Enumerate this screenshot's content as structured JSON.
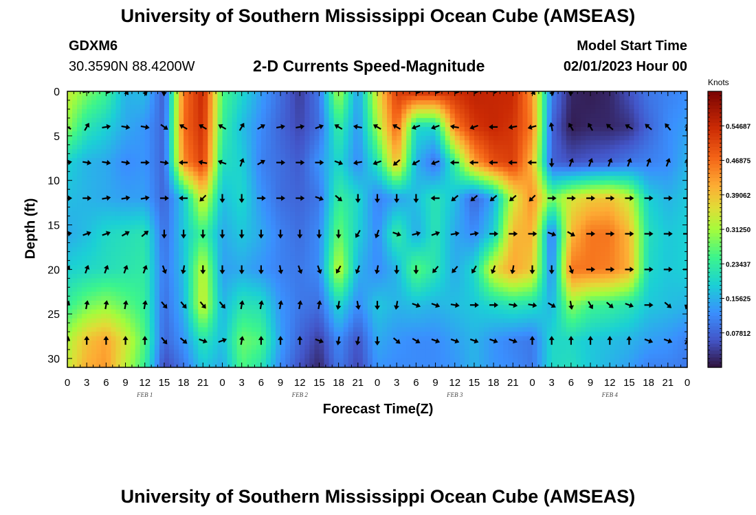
{
  "header": {
    "title": "University of Southern Mississippi Ocean Cube (AMSEAS)",
    "station": "GDXM6",
    "coordinates": "30.3590N  88.4200W",
    "subtitle": "2-D Currents Speed-Magnitude",
    "start_label": "Model Start Time",
    "start_value": "02/01/2023 Hour 00"
  },
  "footer": {
    "title": "University of Southern Mississippi Ocean Cube (AMSEAS)"
  },
  "chart_data": {
    "type": "heatmap",
    "xlabel": "Forecast Time(Z)",
    "ylabel": "Depth (ft)",
    "x_hours_range": [
      0,
      96
    ],
    "y_range": [
      0,
      31
    ],
    "y_inverted": true,
    "x_tick_labels": [
      "0",
      "3",
      "6",
      "9",
      "12",
      "15",
      "18",
      "21",
      "0",
      "3",
      "6",
      "9",
      "12",
      "15",
      "18",
      "21",
      "0",
      "3",
      "6",
      "9",
      "12",
      "15",
      "18",
      "21",
      "0",
      "3",
      "6",
      "9",
      "12",
      "15",
      "18",
      "21",
      "0"
    ],
    "y_ticks": [
      0,
      5,
      10,
      15,
      20,
      25,
      30
    ],
    "day_labels": [
      {
        "label": "FEB 1",
        "hour": 12
      },
      {
        "label": "FEB 2",
        "hour": 36
      },
      {
        "label": "FEB 3",
        "hour": 60
      },
      {
        "label": "FEB 4",
        "hour": 84
      }
    ],
    "colorbar": {
      "units": "Knots",
      "range": [
        0,
        0.625
      ],
      "tick_labels": [
        "0.54687",
        "0.46875",
        "0.39062",
        "0.31250",
        "0.23437",
        "0.15625",
        "0.07812"
      ],
      "tick_values": [
        0.54687,
        0.46875,
        0.39062,
        0.3125,
        0.23437,
        0.15625,
        0.07812
      ]
    },
    "grid_times_hours": [
      0,
      3,
      6,
      9,
      12,
      15,
      18,
      21,
      24,
      27,
      30,
      33,
      36,
      39,
      42,
      45,
      48,
      51,
      54,
      57,
      60,
      63,
      66,
      69,
      72,
      75,
      78,
      81,
      84,
      87,
      90,
      93,
      96
    ],
    "grid_depths_ft": [
      0,
      4,
      8,
      12,
      16,
      20,
      24,
      28,
      31
    ],
    "speed_knots": [
      [
        0.34,
        0.29,
        0.25,
        0.16,
        0.17,
        0.07,
        0.46,
        0.55,
        0.26,
        0.2,
        0.14,
        0.09,
        0.04,
        0.1,
        0.32,
        0.14,
        0.36,
        0.52,
        0.54,
        0.54,
        0.54,
        0.56,
        0.55,
        0.55,
        0.43,
        0.11,
        0.02,
        0.01,
        0.02,
        0.06,
        0.1,
        0.11,
        0.12
      ],
      [
        0.3,
        0.22,
        0.19,
        0.15,
        0.13,
        0.08,
        0.47,
        0.54,
        0.24,
        0.17,
        0.12,
        0.08,
        0.05,
        0.09,
        0.24,
        0.13,
        0.31,
        0.48,
        0.2,
        0.2,
        0.45,
        0.53,
        0.55,
        0.53,
        0.45,
        0.08,
        0.01,
        0.02,
        0.02,
        0.03,
        0.08,
        0.12,
        0.14
      ],
      [
        0.19,
        0.16,
        0.15,
        0.12,
        0.13,
        0.08,
        0.44,
        0.52,
        0.21,
        0.19,
        0.11,
        0.09,
        0.07,
        0.13,
        0.2,
        0.12,
        0.22,
        0.4,
        0.16,
        0.09,
        0.24,
        0.42,
        0.5,
        0.52,
        0.4,
        0.08,
        0.06,
        0.07,
        0.08,
        0.1,
        0.11,
        0.12,
        0.16
      ],
      [
        0.17,
        0.16,
        0.15,
        0.14,
        0.14,
        0.08,
        0.18,
        0.36,
        0.17,
        0.2,
        0.13,
        0.09,
        0.08,
        0.1,
        0.24,
        0.2,
        0.11,
        0.14,
        0.17,
        0.22,
        0.17,
        0.08,
        0.15,
        0.34,
        0.44,
        0.28,
        0.35,
        0.38,
        0.39,
        0.34,
        0.19,
        0.16,
        0.18
      ],
      [
        0.15,
        0.17,
        0.2,
        0.21,
        0.22,
        0.09,
        0.18,
        0.25,
        0.15,
        0.18,
        0.15,
        0.11,
        0.09,
        0.12,
        0.28,
        0.19,
        0.12,
        0.24,
        0.15,
        0.22,
        0.15,
        0.12,
        0.19,
        0.4,
        0.41,
        0.09,
        0.4,
        0.46,
        0.46,
        0.4,
        0.21,
        0.18,
        0.19
      ],
      [
        0.19,
        0.2,
        0.21,
        0.22,
        0.23,
        0.1,
        0.17,
        0.34,
        0.14,
        0.15,
        0.13,
        0.11,
        0.1,
        0.12,
        0.34,
        0.16,
        0.12,
        0.16,
        0.27,
        0.22,
        0.15,
        0.2,
        0.36,
        0.42,
        0.38,
        0.11,
        0.46,
        0.46,
        0.45,
        0.41,
        0.2,
        0.18,
        0.19
      ],
      [
        0.24,
        0.28,
        0.3,
        0.27,
        0.24,
        0.09,
        0.16,
        0.35,
        0.16,
        0.22,
        0.21,
        0.13,
        0.1,
        0.09,
        0.2,
        0.12,
        0.18,
        0.16,
        0.17,
        0.16,
        0.17,
        0.18,
        0.2,
        0.22,
        0.21,
        0.16,
        0.3,
        0.25,
        0.24,
        0.22,
        0.18,
        0.17,
        0.16
      ],
      [
        0.32,
        0.39,
        0.42,
        0.35,
        0.26,
        0.08,
        0.13,
        0.22,
        0.17,
        0.28,
        0.26,
        0.14,
        0.08,
        0.04,
        0.12,
        0.06,
        0.15,
        0.13,
        0.12,
        0.12,
        0.14,
        0.16,
        0.13,
        0.11,
        0.1,
        0.2,
        0.2,
        0.18,
        0.17,
        0.16,
        0.14,
        0.13,
        0.11
      ],
      [
        0.34,
        0.41,
        0.43,
        0.33,
        0.24,
        0.05,
        0.1,
        0.18,
        0.15,
        0.26,
        0.22,
        0.12,
        0.06,
        0.02,
        0.1,
        0.05,
        0.13,
        0.12,
        0.12,
        0.12,
        0.13,
        0.16,
        0.13,
        0.12,
        0.1,
        0.2,
        0.21,
        0.18,
        0.16,
        0.14,
        0.11,
        0.11,
        0.1
      ]
    ],
    "vector_times_hours": [
      0,
      3,
      6,
      9,
      12,
      15,
      18,
      21,
      24,
      27,
      30,
      33,
      36,
      39,
      42,
      45,
      48,
      51,
      54,
      57,
      60,
      63,
      66,
      69,
      72,
      75,
      78,
      81,
      84,
      87,
      90,
      93,
      96
    ],
    "vector_depths_ft": [
      0,
      4,
      8,
      12,
      16,
      20,
      24,
      28
    ],
    "vector_direction_deg": [
      [
        null,
        75,
        100,
        140,
        160,
        185,
        null,
        null,
        null,
        null,
        null,
        null,
        null,
        null,
        null,
        null,
        null,
        null,
        100,
        100,
        100,
        95,
        90,
        null,
        140,
        165,
        190,
        null,
        null,
        null,
        null,
        null,
        null
      ],
      [
        300,
        30,
        80,
        100,
        100,
        125,
        300,
        300,
        300,
        30,
        60,
        80,
        80,
        70,
        300,
        280,
        300,
        300,
        250,
        250,
        280,
        250,
        270,
        260,
        255,
        350,
        330,
        330,
        310,
        300,
        310,
        320,
        20
      ],
      [
        80,
        100,
        100,
        100,
        90,
        100,
        270,
        280,
        290,
        20,
        60,
        90,
        90,
        90,
        110,
        260,
        250,
        230,
        240,
        250,
        270,
        270,
        270,
        270,
        270,
        180,
        20,
        20,
        20,
        20,
        20,
        20,
        5
      ],
      [
        90,
        90,
        80,
        80,
        80,
        90,
        270,
        225,
        180,
        180,
        90,
        90,
        90,
        110,
        130,
        180,
        180,
        180,
        180,
        270,
        230,
        230,
        230,
        230,
        225,
        90,
        90,
        90,
        90,
        90,
        90,
        90,
        90
      ],
      [
        80,
        70,
        70,
        60,
        50,
        180,
        180,
        180,
        180,
        180,
        180,
        180,
        180,
        180,
        180,
        210,
        200,
        110,
        75,
        70,
        80,
        80,
        90,
        90,
        90,
        110,
        120,
        90,
        90,
        90,
        90,
        90,
        90
      ],
      [
        30,
        20,
        20,
        20,
        20,
        160,
        190,
        180,
        180,
        180,
        180,
        170,
        160,
        160,
        210,
        200,
        190,
        180,
        180,
        220,
        220,
        210,
        200,
        190,
        180,
        180,
        160,
        90,
        90,
        90,
        90,
        90,
        90
      ],
      [
        20,
        10,
        10,
        10,
        10,
        140,
        140,
        140,
        140,
        10,
        10,
        10,
        10,
        10,
        190,
        170,
        180,
        190,
        110,
        110,
        100,
        90,
        90,
        100,
        100,
        120,
        170,
        150,
        130,
        110,
        90,
        130,
        200
      ],
      [
        10,
        0,
        0,
        0,
        0,
        140,
        130,
        110,
        70,
        10,
        0,
        0,
        0,
        110,
        190,
        190,
        180,
        130,
        120,
        110,
        110,
        110,
        110,
        110,
        0,
        0,
        0,
        0,
        0,
        0,
        110,
        110,
        30
      ]
    ]
  }
}
